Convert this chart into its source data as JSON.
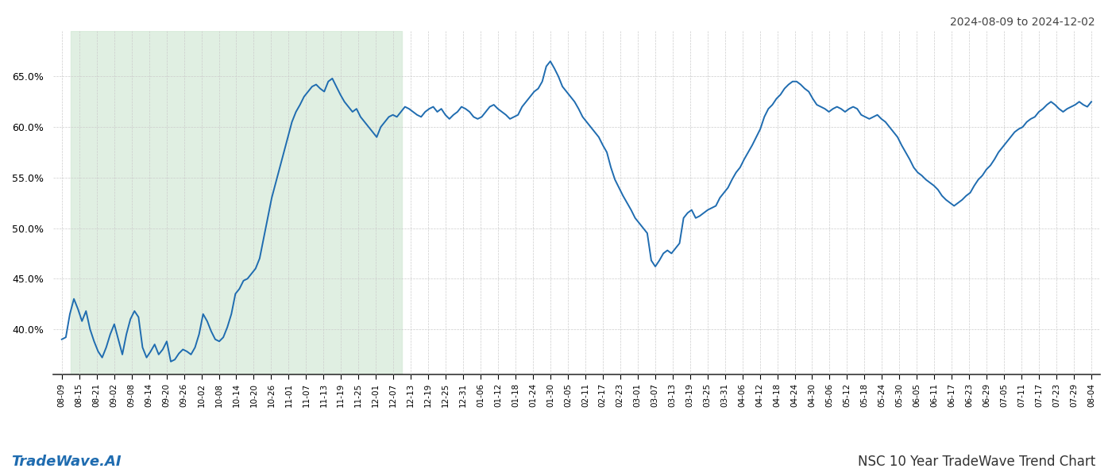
{
  "title_top_right": "2024-08-09 to 2024-12-02",
  "title_bottom_right": "NSC 10 Year TradeWave Trend Chart",
  "title_bottom_left": "TradeWave.AI",
  "line_color": "#1f6cb0",
  "line_width": 1.4,
  "shaded_region_color": "#d6ead9",
  "shaded_region_alpha": 0.75,
  "ylim": [
    0.355,
    0.695
  ],
  "yticks": [
    0.4,
    0.45,
    0.5,
    0.55,
    0.6,
    0.65
  ],
  "background_color": "#ffffff",
  "grid_color": "#cccccc",
  "x_labels": [
    "08-09",
    "08-15",
    "08-21",
    "09-02",
    "09-08",
    "09-14",
    "09-20",
    "09-26",
    "10-02",
    "10-08",
    "10-14",
    "10-20",
    "10-26",
    "11-01",
    "11-07",
    "11-13",
    "11-19",
    "11-25",
    "12-01",
    "12-07",
    "12-13",
    "12-19",
    "12-25",
    "12-31",
    "01-06",
    "01-12",
    "01-18",
    "01-24",
    "01-30",
    "02-05",
    "02-11",
    "02-17",
    "02-23",
    "03-01",
    "03-07",
    "03-13",
    "03-19",
    "03-25",
    "03-31",
    "04-06",
    "04-12",
    "04-18",
    "04-24",
    "04-30",
    "05-06",
    "05-12",
    "05-18",
    "05-24",
    "05-30",
    "06-05",
    "06-11",
    "06-17",
    "06-23",
    "06-29",
    "07-05",
    "07-11",
    "07-17",
    "07-23",
    "07-29",
    "08-04"
  ],
  "shaded_start_label": "08-15",
  "shaded_end_label": "12-07",
  "values": [
    0.39,
    0.392,
    0.415,
    0.43,
    0.42,
    0.408,
    0.418,
    0.4,
    0.388,
    0.378,
    0.372,
    0.382,
    0.395,
    0.405,
    0.39,
    0.375,
    0.395,
    0.41,
    0.418,
    0.412,
    0.382,
    0.372,
    0.378,
    0.385,
    0.375,
    0.38,
    0.388,
    0.368,
    0.37,
    0.376,
    0.38,
    0.378,
    0.375,
    0.382,
    0.395,
    0.415,
    0.408,
    0.398,
    0.39,
    0.388,
    0.392,
    0.402,
    0.415,
    0.435,
    0.44,
    0.448,
    0.45,
    0.455,
    0.46,
    0.47,
    0.49,
    0.51,
    0.53,
    0.545,
    0.56,
    0.575,
    0.59,
    0.605,
    0.615,
    0.622,
    0.63,
    0.635,
    0.64,
    0.642,
    0.638,
    0.635,
    0.645,
    0.648,
    0.64,
    0.632,
    0.625,
    0.62,
    0.615,
    0.618,
    0.61,
    0.605,
    0.6,
    0.595,
    0.59,
    0.6,
    0.605,
    0.61,
    0.612,
    0.61,
    0.615,
    0.62,
    0.618,
    0.615,
    0.612,
    0.61,
    0.615,
    0.618,
    0.62,
    0.615,
    0.618,
    0.612,
    0.608,
    0.612,
    0.615,
    0.62,
    0.618,
    0.615,
    0.61,
    0.608,
    0.61,
    0.615,
    0.62,
    0.622,
    0.618,
    0.615,
    0.612,
    0.608,
    0.61,
    0.612,
    0.62,
    0.625,
    0.63,
    0.635,
    0.638,
    0.645,
    0.66,
    0.665,
    0.658,
    0.65,
    0.64,
    0.635,
    0.63,
    0.625,
    0.618,
    0.61,
    0.605,
    0.6,
    0.595,
    0.59,
    0.582,
    0.575,
    0.56,
    0.548,
    0.54,
    0.532,
    0.525,
    0.518,
    0.51,
    0.505,
    0.5,
    0.495,
    0.468,
    0.462,
    0.468,
    0.475,
    0.478,
    0.475,
    0.48,
    0.485,
    0.51,
    0.515,
    0.518,
    0.51,
    0.512,
    0.515,
    0.518,
    0.52,
    0.522,
    0.53,
    0.535,
    0.54,
    0.548,
    0.555,
    0.56,
    0.568,
    0.575,
    0.582,
    0.59,
    0.598,
    0.61,
    0.618,
    0.622,
    0.628,
    0.632,
    0.638,
    0.642,
    0.645,
    0.645,
    0.642,
    0.638,
    0.635,
    0.628,
    0.622,
    0.62,
    0.618,
    0.615,
    0.618,
    0.62,
    0.618,
    0.615,
    0.618,
    0.62,
    0.618,
    0.612,
    0.61,
    0.608,
    0.61,
    0.612,
    0.608,
    0.605,
    0.6,
    0.595,
    0.59,
    0.582,
    0.575,
    0.568,
    0.56,
    0.555,
    0.552,
    0.548,
    0.545,
    0.542,
    0.538,
    0.532,
    0.528,
    0.525,
    0.522,
    0.525,
    0.528,
    0.532,
    0.535,
    0.542,
    0.548,
    0.552,
    0.558,
    0.562,
    0.568,
    0.575,
    0.58,
    0.585,
    0.59,
    0.595,
    0.598,
    0.6,
    0.605,
    0.608,
    0.61,
    0.615,
    0.618,
    0.622,
    0.625,
    0.622,
    0.618,
    0.615,
    0.618,
    0.62,
    0.622,
    0.625,
    0.622,
    0.62,
    0.625
  ]
}
